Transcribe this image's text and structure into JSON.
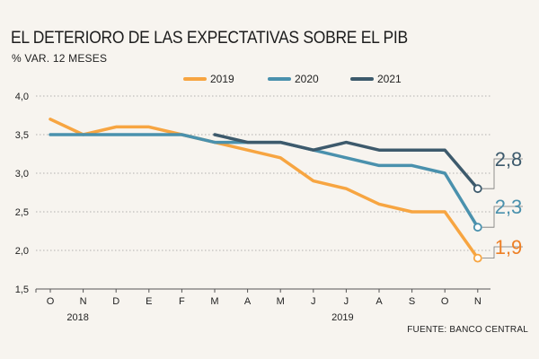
{
  "title": "EL DETERIORO DE LAS EXPECTATIVAS SOBRE EL PIB",
  "subtitle": "% VAR. 12 MESES",
  "source": "FUENTE: BANCO CENTRAL",
  "chart_data": {
    "type": "line",
    "title": "EL DETERIORO DE LAS EXPECTATIVAS SOBRE EL PIB",
    "ylabel": "% VAR. 12 MESES",
    "xlabel": "",
    "categories": [
      "O",
      "N",
      "D",
      "E",
      "F",
      "M",
      "A",
      "M",
      "J",
      "J",
      "A",
      "S",
      "O",
      "N"
    ],
    "year_labels": [
      {
        "label": "2018",
        "category_index": 1
      },
      {
        "label": "2019",
        "category_index": 9
      }
    ],
    "ylim": [
      1.5,
      4.0
    ],
    "yticks": [
      "1,5",
      "2,0",
      "2,5",
      "3,0",
      "3,5",
      "4,0"
    ],
    "ytick_values": [
      1.5,
      2.0,
      2.5,
      3.0,
      3.5,
      4.0
    ],
    "grid": true,
    "legend_position": "top",
    "series": [
      {
        "name": "2019",
        "color": "#f7a541",
        "label_color": "#ee7f25",
        "values": [
          3.7,
          3.5,
          3.6,
          3.6,
          3.5,
          3.4,
          3.3,
          3.2,
          2.9,
          2.8,
          2.6,
          2.5,
          2.5,
          1.9
        ],
        "end_label": "1,9"
      },
      {
        "name": "2020",
        "color": "#4a91ad",
        "label_color": "#4a91ad",
        "values": [
          3.5,
          3.5,
          3.5,
          3.5,
          3.5,
          3.4,
          3.4,
          3.4,
          3.3,
          3.2,
          3.1,
          3.1,
          3.0,
          2.3
        ],
        "end_label": "2,3"
      },
      {
        "name": "2021",
        "color": "#3d5a6c",
        "label_color": "#3d5a6c",
        "values": [
          null,
          null,
          null,
          null,
          null,
          3.5,
          3.4,
          3.4,
          3.3,
          3.4,
          3.3,
          3.3,
          3.3,
          2.8
        ],
        "end_label": "2,8"
      }
    ]
  }
}
